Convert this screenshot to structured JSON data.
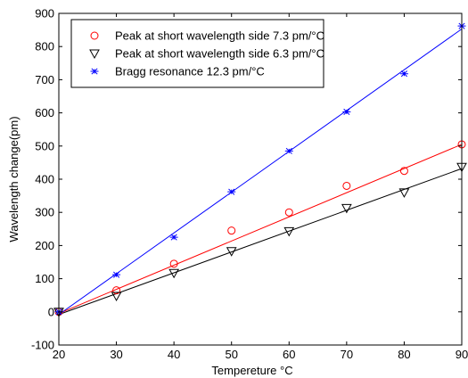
{
  "chart_data": {
    "type": "scatter",
    "xlabel": "Tempereture °C",
    "ylabel": "Wavelength change(pm)",
    "xlim": [
      20,
      90
    ],
    "ylim": [
      -100,
      900
    ],
    "xticks": [
      20,
      30,
      40,
      50,
      60,
      70,
      80,
      90
    ],
    "yticks": [
      -100,
      0,
      100,
      200,
      300,
      400,
      500,
      600,
      700,
      800,
      900
    ],
    "grid": false,
    "legend_position": "top-left",
    "series": [
      {
        "name": "Peak at short wavelength side  7.3 pm/°C",
        "marker": "circle",
        "color": "#ff0000",
        "x": [
          20,
          30,
          40,
          50,
          60,
          70,
          80,
          90
        ],
        "y": [
          0,
          65,
          145,
          245,
          300,
          380,
          425,
          505
        ],
        "fit": {
          "x": [
            20,
            90
          ],
          "y": [
            -5,
            505
          ]
        }
      },
      {
        "name": "Peak at short wavelength side  6.3 pm/°C",
        "marker": "triangle-down",
        "color": "#000000",
        "x": [
          20,
          30,
          40,
          50,
          60,
          70,
          80,
          90
        ],
        "y": [
          0,
          48,
          117,
          183,
          243,
          313,
          360,
          437
        ],
        "fit": {
          "x": [
            20,
            90
          ],
          "y": [
            -8,
            432
          ]
        }
      },
      {
        "name": "Bragg resonance  12.3 pm/°C",
        "marker": "asterisk",
        "color": "#0000ff",
        "x": [
          20,
          30,
          40,
          50,
          60,
          70,
          80,
          90
        ],
        "y": [
          0,
          112,
          225,
          362,
          485,
          603,
          718,
          862
        ],
        "fit": {
          "x": [
            20,
            90
          ],
          "y": [
            -8,
            853
          ]
        }
      }
    ]
  }
}
